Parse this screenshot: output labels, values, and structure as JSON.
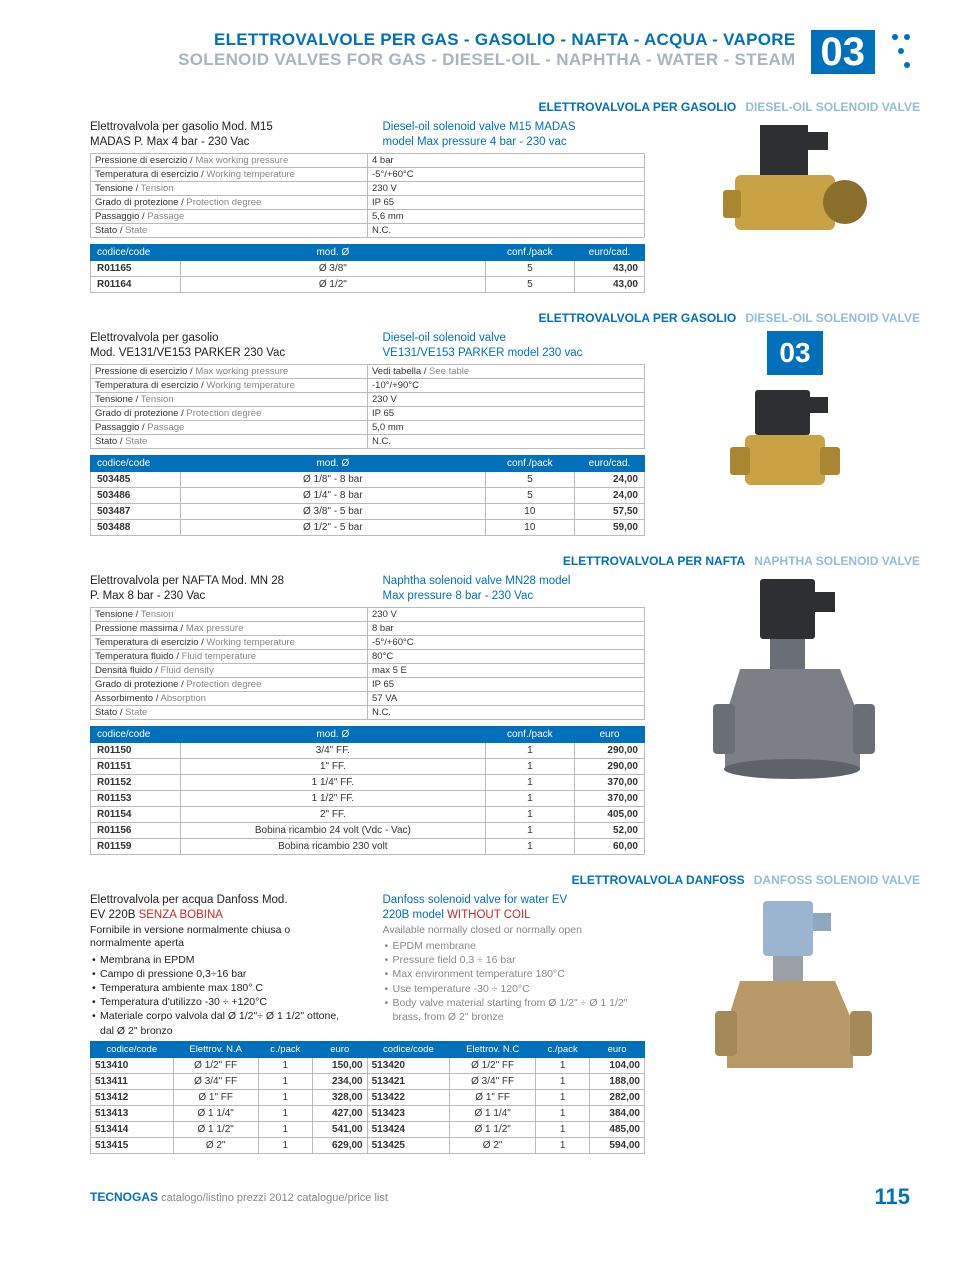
{
  "header": {
    "title_it": "ELETTROVALVOLE PER GAS - GASOLIO - NAFTA - ACQUA - VAPORE",
    "title_en": "SOLENOID VALVES FOR GAS - DIESEL-OIL - NAPHTHA - WATER - STEAM",
    "badge": "03"
  },
  "section1": {
    "cat_it": "ELETTROVALVOLA PER GASOLIO",
    "cat_en": "DIESEL-OIL SOLENOID VALVE",
    "title_it_l1": "Elettrovalvola per gasolio Mod. M15",
    "title_it_l2": "MADAS P. Max 4 bar - 230 Vac",
    "title_en_l1": "Diesel-oil solenoid valve M15 MADAS",
    "title_en_l2": "model  Max pressure 4 bar - 230 vac",
    "specs": [
      [
        "Pressione di esercizio / Max working pressure",
        "4 bar"
      ],
      [
        "Temperatura di esercizio / Working temperature",
        "-5°/+60°C"
      ],
      [
        "Tensione / Tension",
        "230 V"
      ],
      [
        "Grado di protezione / Protection degree",
        "IP 65"
      ],
      [
        "Passaggio / Passage",
        "5,6 mm"
      ],
      [
        "Stato / State",
        "N.C."
      ]
    ],
    "price_cols": [
      "codice/code",
      "mod. Ø",
      "conf./pack",
      "euro/cad."
    ],
    "prices": [
      [
        "R01165",
        "Ø 3/8\"",
        "5",
        "43,00"
      ],
      [
        "R01164",
        "Ø 1/2\"",
        "5",
        "43,00"
      ]
    ]
  },
  "section2": {
    "cat_it": "ELETTROVALVOLA PER GASOLIO",
    "cat_en": "DIESEL-OIL SOLENOID VALVE",
    "title_it_l1": "Elettrovalvola per gasolio",
    "title_it_l2": "Mod. VE131/VE153 PARKER 230 Vac",
    "title_en_l1": "Diesel-oil solenoid valve",
    "title_en_l2": "VE131/VE153 PARKER model 230 vac",
    "specs": [
      [
        "Pressione di esercizio / Max working pressure",
        "Vedi tabella / See table"
      ],
      [
        "Temperatura di esercizio / Working temperature",
        "-10°/+90°C"
      ],
      [
        "Tensione / Tension",
        "230 V"
      ],
      [
        "Grado di protezione / Protection degree",
        "IP 65"
      ],
      [
        "Passaggio / Passage",
        "5,0 mm"
      ],
      [
        "Stato / State",
        "N.C."
      ]
    ],
    "price_cols": [
      "codice/code",
      "mod. Ø",
      "conf./pack",
      "euro/cad."
    ],
    "prices": [
      [
        "503485",
        "Ø 1/8\" - 8 bar",
        "5",
        "24,00"
      ],
      [
        "503486",
        "Ø 1/4\" - 8 bar",
        "5",
        "24,00"
      ],
      [
        "503487",
        "Ø 3/8\" - 5 bar",
        "10",
        "57,50"
      ],
      [
        "503488",
        "Ø 1/2\" - 5 bar",
        "10",
        "59,00"
      ]
    ],
    "side_badge": "03"
  },
  "section3": {
    "cat_it": "ELETTROVALVOLA PER NAFTA",
    "cat_en": "NAPHTHA SOLENOID VALVE",
    "title_it_l1": "Elettrovalvola per NAFTA Mod. MN 28",
    "title_it_l2": "P. Max 8 bar - 230 Vac",
    "title_en_l1": "Naphtha solenoid valve MN28 model",
    "title_en_l2": "Max pressure 8 bar - 230 Vac",
    "specs": [
      [
        "Tensione / Tension",
        "230 V"
      ],
      [
        "Pressione massima / Max pressure",
        "8 bar"
      ],
      [
        "Temperatura di esercizio  / Working temperature",
        "-5°/+60°C"
      ],
      [
        "Temperatura fluido / Fluid temperature",
        "80°C"
      ],
      [
        "Densità fluido / Fluid density",
        "max 5 E"
      ],
      [
        "Grado di protezione  / Protection degree",
        "IP 65"
      ],
      [
        "Assorbimento / Absorption",
        "57 VA"
      ],
      [
        "Stato / State",
        "N.C."
      ]
    ],
    "price_cols": [
      "codice/code",
      "mod. Ø",
      "conf./pack",
      "euro"
    ],
    "prices": [
      [
        "R01150",
        "3/4\" FF.",
        "1",
        "290,00"
      ],
      [
        "R01151",
        "1\" FF.",
        "1",
        "290,00"
      ],
      [
        "R01152",
        "1 1/4\" FF.",
        "1",
        "370,00"
      ],
      [
        "R01153",
        "1 1/2\" FF.",
        "1",
        "370,00"
      ],
      [
        "R01154",
        "2\" FF.",
        "1",
        "405,00"
      ],
      [
        "R01156",
        "Bobina ricambio 24 volt (Vdc - Vac)",
        "1",
        "52,00"
      ],
      [
        "R01159",
        "Bobina ricambio 230 volt",
        "1",
        "60,00"
      ]
    ]
  },
  "section4": {
    "cat_it": "ELETTROVALVOLA DANFOSS",
    "cat_en": "DANFOSS SOLENOID VALVE",
    "title_it_l1": "Elettrovalvola per acqua Danfoss Mod.",
    "title_it_l2a": "EV 220B ",
    "title_it_l2b": "SENZA BOBINA",
    "title_it_sub": "Fornibile in versione normalmente chiusa o normalmente aperta",
    "title_en_l1": "Danfoss solenoid valve for water EV",
    "title_en_l2a": "220B model ",
    "title_en_l2b": "WITHOUT COIL",
    "title_en_sub": "Available normally closed or normally open",
    "bullets_it": [
      "Membrana in EPDM",
      "Campo di pressione 0,3÷16 bar",
      "Temperatura ambiente max 180° C",
      "Temperatura d'utilizzo -30 ÷ +120°C",
      "Materiale corpo valvola dal Ø 1/2\"÷ Ø 1 1/2\" ottone, dal Ø 2\" bronzo"
    ],
    "bullets_en": [
      "EPDM membrane",
      "Pressure field 0,3 ÷ 16 bar",
      "Max environment temperature 180°C",
      "Use temperature -30 ÷ 120°C",
      "Body valve material starting from Ø 1/2\" ÷ Ø 1 1/2\" brass, from Ø 2\" bronze"
    ],
    "double_cols": [
      "codice/code",
      "Elettrov. N.A",
      "c./pack",
      "euro",
      "codice/code",
      "Elettrov. N.C",
      "c./pack",
      "euro"
    ],
    "rows": [
      [
        "513410",
        "Ø 1/2\" FF",
        "1",
        "150,00",
        "513420",
        "Ø 1/2\" FF",
        "1",
        "104,00"
      ],
      [
        "513411",
        "Ø 3/4\" FF",
        "1",
        "234,00",
        "513421",
        "Ø 3/4\" FF",
        "1",
        "188,00"
      ],
      [
        "513412",
        "Ø 1\" FF",
        "1",
        "328,00",
        "513422",
        "Ø 1\" FF",
        "1",
        "282,00"
      ],
      [
        "513413",
        "Ø 1 1/4\"",
        "1",
        "427,00",
        "513423",
        "Ø 1 1/4\"",
        "1",
        "384,00"
      ],
      [
        "513414",
        "Ø 1 1/2\"",
        "1",
        "541,00",
        "513424",
        "Ø 1 1/2\"",
        "1",
        "485,00"
      ],
      [
        "513415",
        "Ø 2\"",
        "1",
        "629,00",
        "513425",
        "Ø 2\"",
        "1",
        "594,00"
      ]
    ]
  },
  "footer": {
    "brand": "TECNOGAS",
    "sub": " catalogo/listino prezzi 2012 catalogue/price list",
    "page": "115"
  },
  "colors": {
    "primary": "#0070ba",
    "light": "#93bdd8",
    "brass": "#c9a245",
    "steel": "#6a6e76",
    "dark": "#2e2f33"
  }
}
